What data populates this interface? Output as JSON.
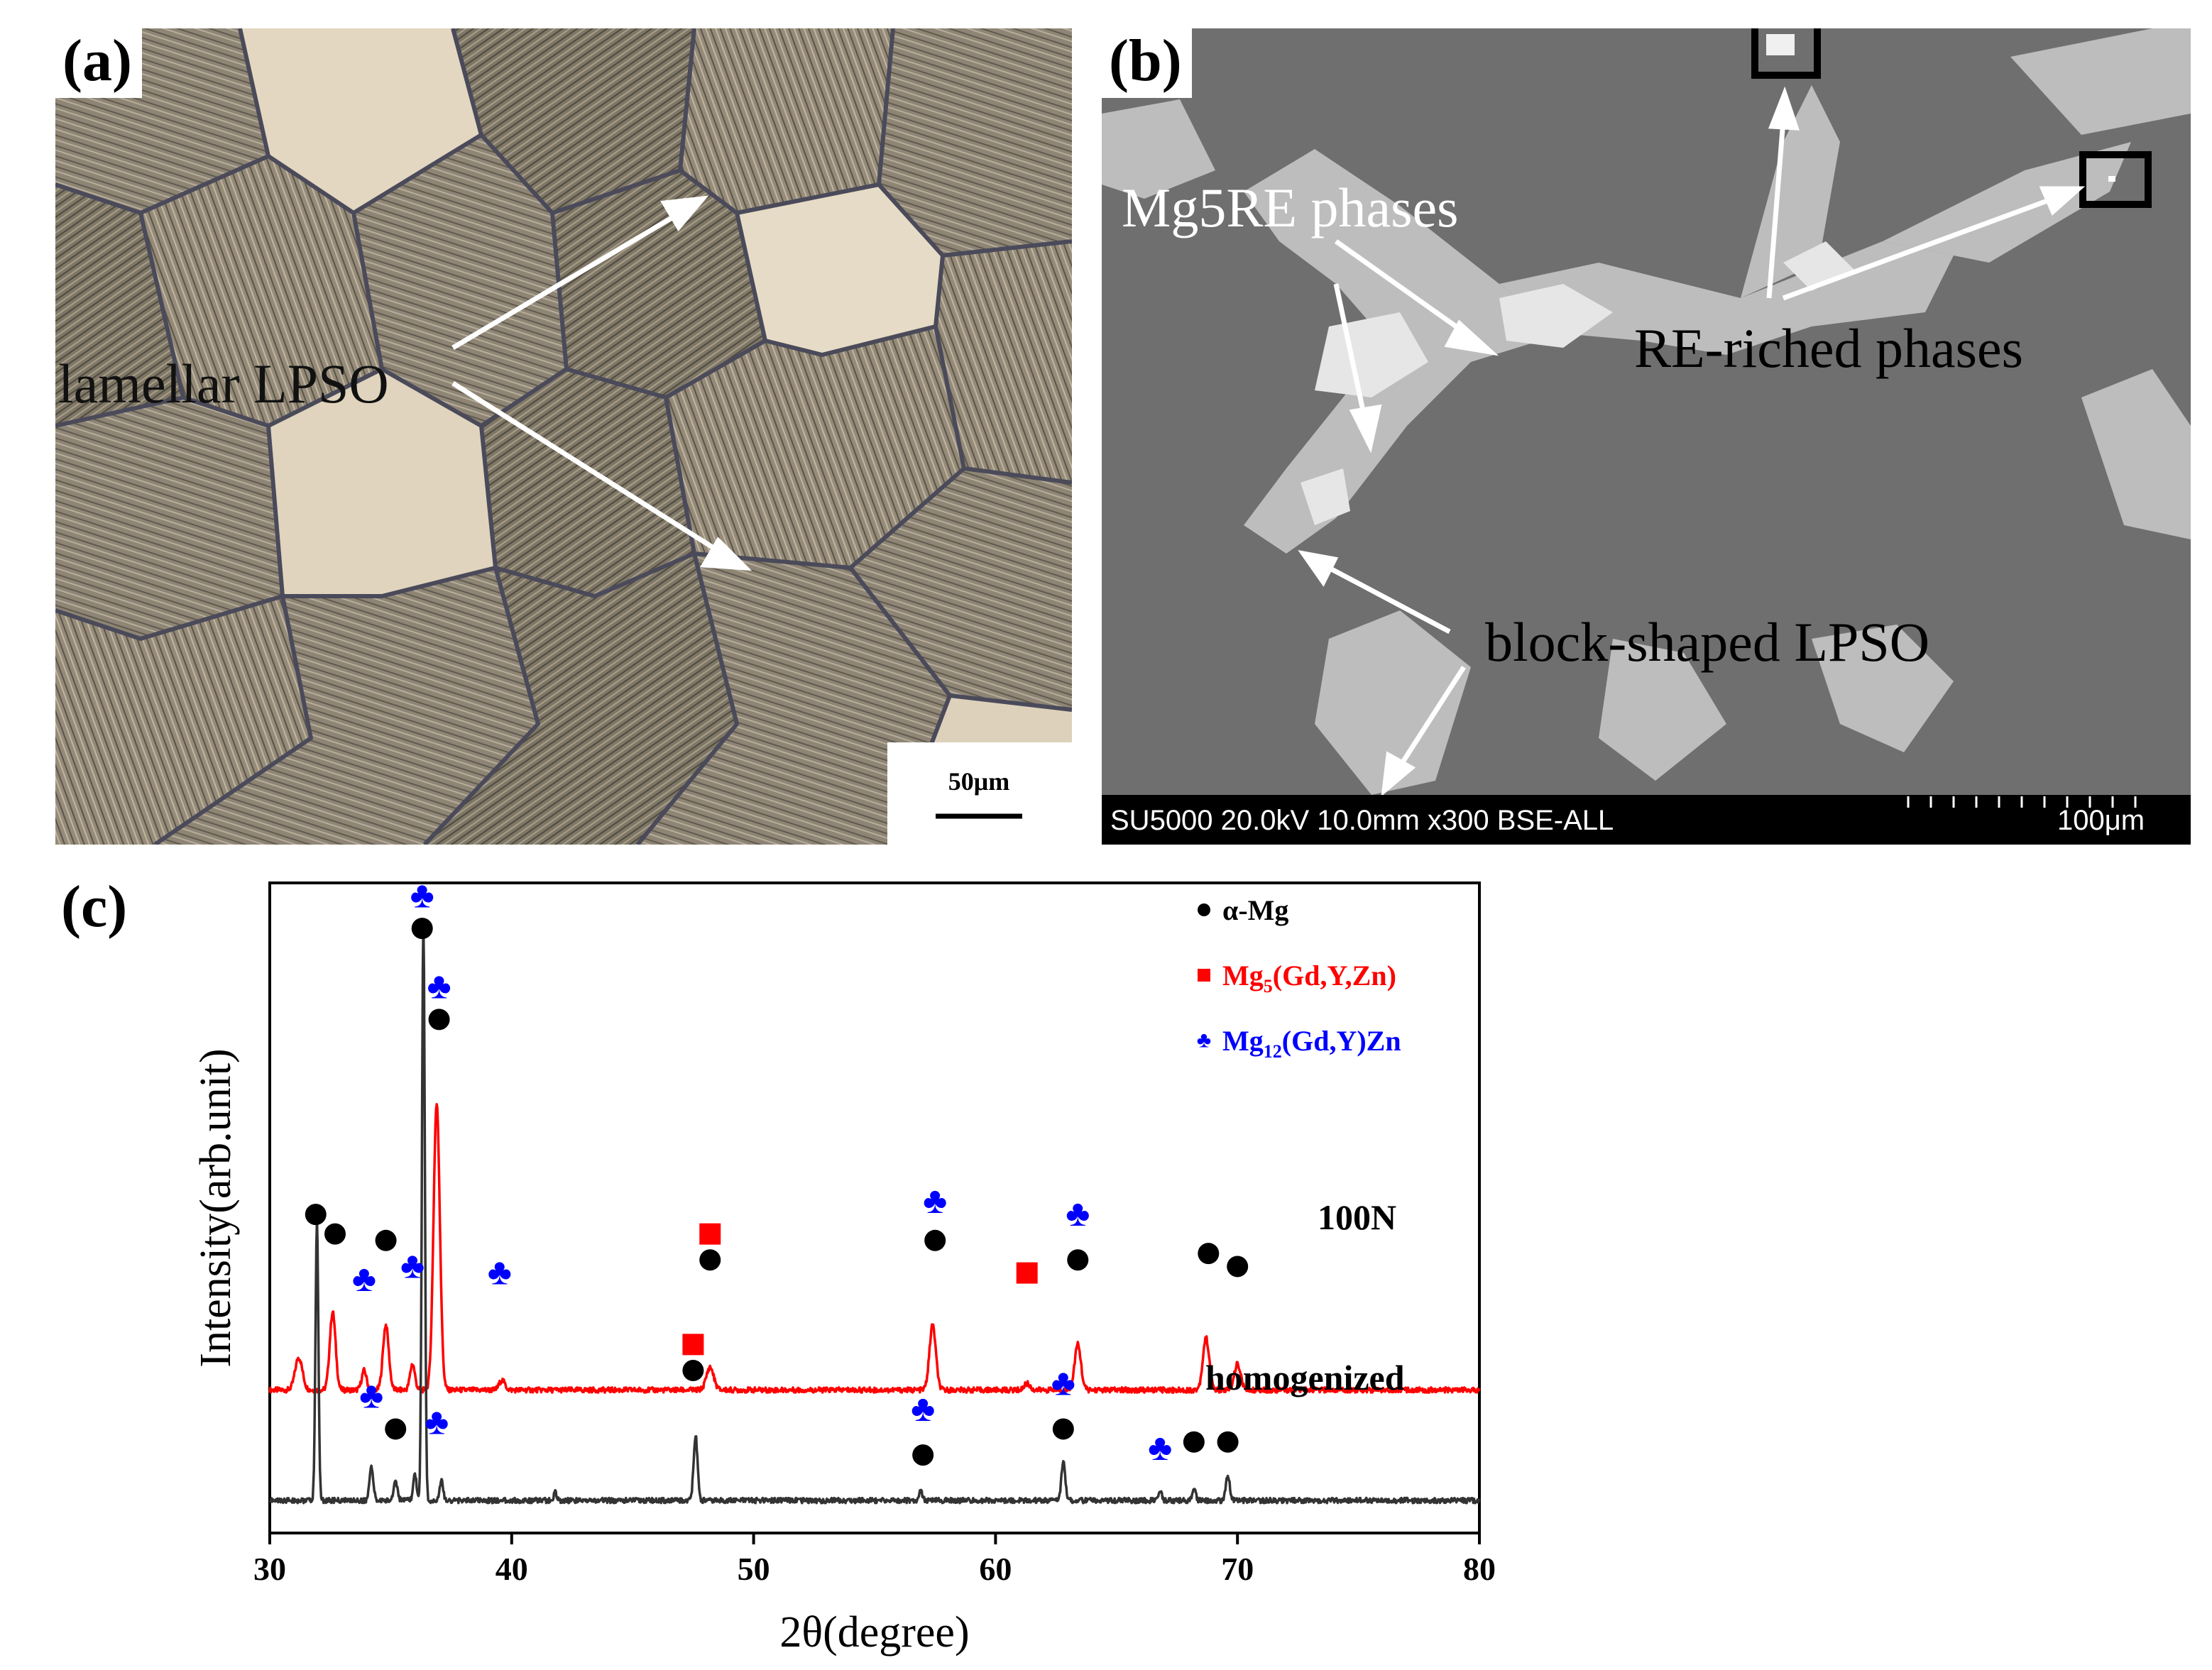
{
  "panel_a": {
    "label": "(a)",
    "annotation": "lamellar LPSO",
    "scale_bar": "50μm"
  },
  "panel_b": {
    "label": "(b)",
    "annotations": {
      "mg5re": "Mg5RE phases",
      "re_riched": "RE-riched phases",
      "block_lpso": "block-shaped LPSO"
    },
    "info_bar": "SU5000 20.0kV 10.0mm x300 BSE-ALL",
    "scale": "100μm"
  },
  "panel_c": {
    "label": "(c)"
  },
  "colors": {
    "alpha_mg": "#000000",
    "mg5": "#ff0000",
    "mg12": "#0000ff",
    "line_100n": "#ff0000",
    "line_homog": "#333333"
  },
  "chart_data": {
    "type": "line",
    "xlabel": "2θ(degree)",
    "ylabel": "Intensity(arb.unit)",
    "xlim": [
      30,
      80
    ],
    "xticks": [
      30,
      40,
      50,
      60,
      70,
      80
    ],
    "legend": [
      {
        "symbol": "circle",
        "label": "α-Mg"
      },
      {
        "symbol": "square",
        "label": "Mg",
        "sub": "5",
        "suffix": "(Gd,Y,Zn)"
      },
      {
        "symbol": "club",
        "label": "Mg",
        "sub": "12",
        "suffix": "(Gd,Y)Zn"
      }
    ],
    "series": [
      {
        "name": "100N",
        "baseline": 0.22,
        "peaks": [
          {
            "x": 31.2,
            "h": 0.05,
            "w": 0.15
          },
          {
            "x": 32.6,
            "h": 0.12,
            "w": 0.12
          },
          {
            "x": 33.9,
            "h": 0.03,
            "w": 0.1
          },
          {
            "x": 34.8,
            "h": 0.1,
            "w": 0.12
          },
          {
            "x": 35.9,
            "h": 0.04,
            "w": 0.1
          },
          {
            "x": 36.9,
            "h": 0.44,
            "w": 0.13
          },
          {
            "x": 39.6,
            "h": 0.015,
            "w": 0.12
          },
          {
            "x": 48.2,
            "h": 0.035,
            "w": 0.15
          },
          {
            "x": 57.4,
            "h": 0.1,
            "w": 0.13
          },
          {
            "x": 61.3,
            "h": 0.01,
            "w": 0.12
          },
          {
            "x": 63.4,
            "h": 0.07,
            "w": 0.13
          },
          {
            "x": 68.7,
            "h": 0.08,
            "w": 0.13
          },
          {
            "x": 70.0,
            "h": 0.04,
            "w": 0.13
          }
        ],
        "markers": [
          {
            "type": "circle",
            "x": 31.9,
            "level": 0.49
          },
          {
            "type": "circle",
            "x": 32.7,
            "level": 0.46
          },
          {
            "type": "club",
            "x": 33.9,
            "level": 0.39
          },
          {
            "type": "circle",
            "x": 34.8,
            "level": 0.45
          },
          {
            "type": "club",
            "x": 35.9,
            "level": 0.41
          },
          {
            "type": "club",
            "x": 36.3,
            "level": 0.98
          },
          {
            "type": "circle",
            "x": 36.3,
            "level": 0.93
          },
          {
            "type": "club",
            "x": 37.0,
            "level": 0.84
          },
          {
            "type": "circle",
            "x": 37.0,
            "level": 0.79
          },
          {
            "type": "club",
            "x": 39.5,
            "level": 0.4
          },
          {
            "type": "square",
            "x": 48.2,
            "level": 0.46
          },
          {
            "type": "circle",
            "x": 48.2,
            "level": 0.42
          },
          {
            "type": "club",
            "x": 57.5,
            "level": 0.51
          },
          {
            "type": "circle",
            "x": 57.5,
            "level": 0.45
          },
          {
            "type": "square",
            "x": 61.3,
            "level": 0.4
          },
          {
            "type": "club",
            "x": 63.4,
            "level": 0.49
          },
          {
            "type": "circle",
            "x": 63.4,
            "level": 0.42
          },
          {
            "type": "circle",
            "x": 68.8,
            "level": 0.43
          },
          {
            "type": "circle",
            "x": 70.0,
            "level": 0.41
          }
        ],
        "label": "100N"
      },
      {
        "name": "homogenized",
        "baseline": 0.05,
        "peaks": [
          {
            "x": 31.95,
            "h": 0.43,
            "w": 0.06
          },
          {
            "x": 34.2,
            "h": 0.05,
            "w": 0.08
          },
          {
            "x": 35.2,
            "h": 0.03,
            "w": 0.08
          },
          {
            "x": 36.0,
            "h": 0.04,
            "w": 0.07
          },
          {
            "x": 36.35,
            "h": 0.89,
            "w": 0.06
          },
          {
            "x": 37.1,
            "h": 0.03,
            "w": 0.07
          },
          {
            "x": 41.8,
            "h": 0.012,
            "w": 0.06
          },
          {
            "x": 47.6,
            "h": 0.1,
            "w": 0.08
          },
          {
            "x": 56.9,
            "h": 0.015,
            "w": 0.07
          },
          {
            "x": 62.8,
            "h": 0.06,
            "w": 0.08
          },
          {
            "x": 66.8,
            "h": 0.015,
            "w": 0.07
          },
          {
            "x": 68.2,
            "h": 0.02,
            "w": 0.07
          },
          {
            "x": 69.6,
            "h": 0.04,
            "w": 0.08
          }
        ],
        "markers": [
          {
            "type": "club",
            "x": 34.2,
            "level": 0.21
          },
          {
            "type": "circle",
            "x": 35.2,
            "level": 0.16
          },
          {
            "type": "club",
            "x": 36.9,
            "level": 0.17
          },
          {
            "type": "square",
            "x": 47.5,
            "level": 0.29
          },
          {
            "type": "circle",
            "x": 47.5,
            "level": 0.25
          },
          {
            "type": "club",
            "x": 57.0,
            "level": 0.19
          },
          {
            "type": "circle",
            "x": 57.0,
            "level": 0.12
          },
          {
            "type": "club",
            "x": 62.8,
            "level": 0.23
          },
          {
            "type": "circle",
            "x": 62.8,
            "level": 0.16
          },
          {
            "type": "club",
            "x": 66.8,
            "level": 0.13
          },
          {
            "type": "circle",
            "x": 68.2,
            "level": 0.14
          },
          {
            "type": "circle",
            "x": 69.6,
            "level": 0.14
          }
        ],
        "label": "homogenized"
      }
    ]
  }
}
